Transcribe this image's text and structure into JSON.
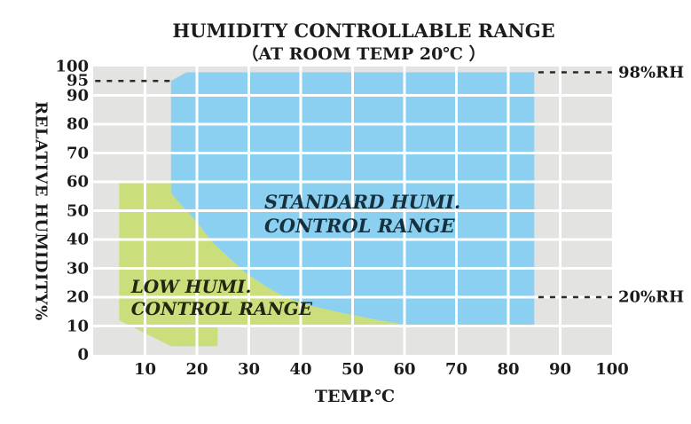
{
  "title": {
    "line1": "HUMIDITY CONTROLLABLE RANGE",
    "line2": "（AT ROOM TEMP 20℃ ）"
  },
  "colors": {
    "plot_background": "#e3e3e1",
    "gridline": "#ffffff",
    "region_standard": "#8bd0f0",
    "region_low": "#cadf7b",
    "dash_line": "#2b2b2b",
    "standard_label_text": "#17303e",
    "low_label_text": "#20260f",
    "text": "#1b1b1b"
  },
  "chart_data": {
    "type": "area",
    "title": "HUMIDITY CONTROLLABLE RANGE (AT ROOM TEMP 20℃)",
    "xlabel": "TEMP.℃",
    "ylabel": "RELATIVE HUMIDITY%",
    "xlim": [
      0,
      100
    ],
    "ylim": [
      0,
      100
    ],
    "x_ticks": [
      10,
      20,
      30,
      40,
      50,
      60,
      70,
      80,
      90,
      100
    ],
    "y_ticks": [
      100,
      95,
      90,
      80,
      70,
      60,
      50,
      40,
      30,
      20,
      10,
      0
    ],
    "grid": true,
    "grid_step": 10,
    "regions": [
      {
        "name": "standard-humidity-control-range",
        "label_lines": [
          "STANDARD HUMI.",
          "CONTROL RANGE"
        ],
        "label_anchor": [
          33,
          57.2
        ],
        "color": "#8bd0f0",
        "points": [
          [
            15,
            95
          ],
          [
            18,
            98
          ],
          [
            85,
            98
          ],
          [
            85,
            10
          ],
          [
            62,
            10
          ],
          [
            55,
            12
          ],
          [
            48,
            14.5
          ],
          [
            42,
            17
          ],
          [
            37,
            20
          ],
          [
            33,
            24
          ],
          [
            29,
            29
          ],
          [
            26,
            34
          ],
          [
            23,
            39
          ],
          [
            20,
            46
          ],
          [
            18,
            50
          ],
          [
            16,
            54
          ],
          [
            15,
            56
          ]
        ]
      },
      {
        "name": "low-humidity-control-range",
        "label_lines": [
          "LOW HUMI.",
          "CONTROL RANGE"
        ],
        "label_anchor": [
          7.3,
          27.4
        ],
        "color": "#cadf7b",
        "points": [
          [
            5,
            60
          ],
          [
            15,
            60
          ],
          [
            15,
            56
          ],
          [
            16,
            54
          ],
          [
            18,
            50
          ],
          [
            20,
            46
          ],
          [
            23,
            39
          ],
          [
            26,
            34
          ],
          [
            29,
            29
          ],
          [
            33,
            24
          ],
          [
            37,
            20
          ],
          [
            42,
            17
          ],
          [
            48,
            14.5
          ],
          [
            55,
            12
          ],
          [
            62,
            10
          ],
          [
            24,
            10
          ],
          [
            24,
            3
          ],
          [
            15,
            3
          ],
          [
            5,
            12
          ]
        ]
      }
    ],
    "reference_lines": [
      {
        "rh": 95,
        "temp_range": [
          0.4,
          15
        ],
        "label": "",
        "side": "left"
      },
      {
        "rh": 98,
        "temp_range": [
          85.8,
          100
        ],
        "label": "98%RH",
        "side": "right"
      },
      {
        "rh": 20,
        "temp_range": [
          85.8,
          100
        ],
        "label": "20%RH",
        "side": "right"
      }
    ]
  }
}
